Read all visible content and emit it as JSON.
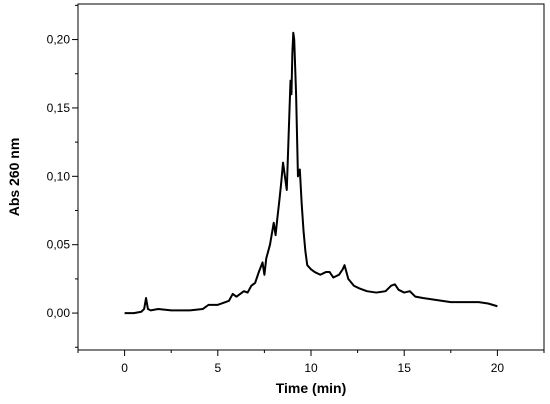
{
  "chart_data": {
    "type": "line",
    "title": "",
    "xlabel": "Time (min)",
    "ylabel": "Abs 260 nm",
    "xlim": [
      -2.5,
      22.5
    ],
    "ylim": [
      -0.027,
      0.226
    ],
    "x_ticks": [
      0,
      5,
      10,
      15,
      20
    ],
    "x_tick_labels": [
      "0",
      "5",
      "10",
      "15",
      "20"
    ],
    "y_ticks": [
      0.0,
      0.05,
      0.1,
      0.15,
      0.2
    ],
    "y_tick_labels": [
      "0,00",
      "0,05",
      "0,10",
      "0,15",
      "0,20"
    ],
    "grid": false,
    "legend": "none",
    "line_color": "#000000",
    "series": [
      {
        "x": [
          0.0,
          0.5,
          0.9,
          1.05,
          1.15,
          1.25,
          1.4,
          1.8,
          2.5,
          3.5,
          4.2,
          4.5,
          5.0,
          5.4,
          5.6,
          5.8,
          6.0,
          6.2,
          6.4,
          6.6,
          6.8,
          7.0,
          7.2,
          7.4,
          7.5,
          7.6,
          7.8,
          8.0,
          8.1,
          8.2,
          8.3,
          8.4,
          8.5,
          8.6,
          8.7,
          8.8,
          8.9,
          8.95,
          9.0,
          9.05,
          9.1,
          9.2,
          9.3,
          9.4,
          9.5,
          9.6,
          9.7,
          9.8,
          10.0,
          10.2,
          10.5,
          10.8,
          11.0,
          11.2,
          11.5,
          11.7,
          11.8,
          11.9,
          12.0,
          12.3,
          12.6,
          13.0,
          13.5,
          14.0,
          14.3,
          14.5,
          14.7,
          15.0,
          15.3,
          15.6,
          16.0,
          16.5,
          17.0,
          17.5,
          18.0,
          18.5,
          19.0,
          19.5,
          20.0
        ],
        "y": [
          0.0,
          0.0,
          0.001,
          0.003,
          0.011,
          0.003,
          0.002,
          0.003,
          0.002,
          0.002,
          0.003,
          0.006,
          0.006,
          0.008,
          0.009,
          0.014,
          0.012,
          0.014,
          0.016,
          0.015,
          0.02,
          0.022,
          0.03,
          0.037,
          0.028,
          0.04,
          0.05,
          0.066,
          0.057,
          0.07,
          0.082,
          0.095,
          0.11,
          0.1,
          0.09,
          0.13,
          0.17,
          0.16,
          0.19,
          0.205,
          0.2,
          0.16,
          0.1,
          0.105,
          0.08,
          0.06,
          0.045,
          0.035,
          0.032,
          0.03,
          0.028,
          0.03,
          0.03,
          0.026,
          0.028,
          0.032,
          0.035,
          0.03,
          0.025,
          0.02,
          0.018,
          0.016,
          0.015,
          0.016,
          0.02,
          0.021,
          0.017,
          0.015,
          0.016,
          0.012,
          0.011,
          0.01,
          0.009,
          0.008,
          0.008,
          0.008,
          0.008,
          0.007,
          0.005
        ]
      }
    ]
  }
}
